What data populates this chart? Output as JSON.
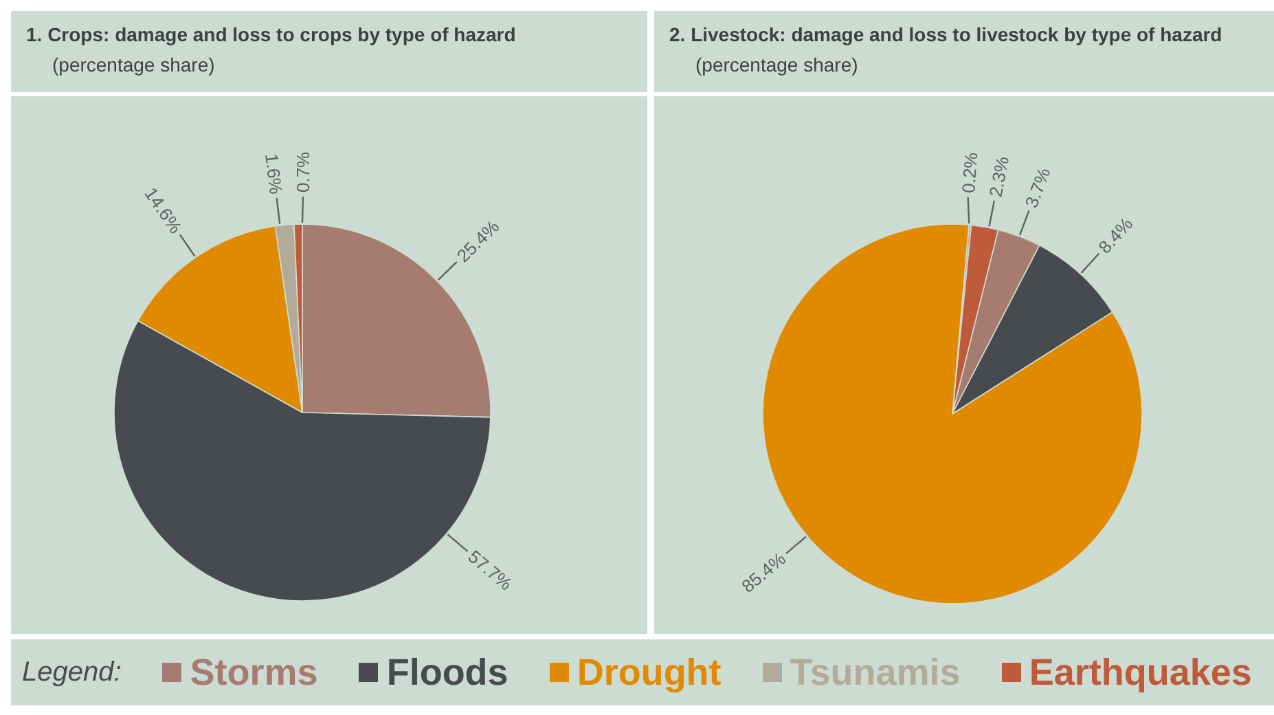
{
  "chart_data": [
    {
      "type": "pie",
      "title": "1. Crops: damage and loss to crops by type of hazard",
      "subtitle": "(percentage share)",
      "categories": [
        "Storms",
        "Floods",
        "Drought",
        "Tsunamis",
        "Earthquakes"
      ],
      "values": [
        25.4,
        57.7,
        14.6,
        1.6,
        0.7
      ],
      "value_labels": [
        "25.4%",
        "57.7%",
        "14.6%",
        "1.6%",
        "0.7%"
      ],
      "colors": [
        "#a67c70",
        "#474b50",
        "#e08a00",
        "#b3ab99",
        "#bf5a3a"
      ],
      "legend": "bottom",
      "legend_title": "Legend:"
    },
    {
      "type": "pie",
      "title": "2. Livestock: damage and loss to livestock by type of hazard",
      "subtitle": "(percentage share)",
      "categories": [
        null,
        null,
        null,
        null,
        null
      ],
      "values": [
        0.2,
        2.3,
        3.7,
        8.4,
        85.4
      ],
      "value_labels": [
        "0.2%",
        "2.3%",
        "3.7%",
        "8.4%",
        "85.4%"
      ],
      "colors": [
        "#b3ab99",
        "#bf5a3a",
        "#a67c70",
        "#474b50",
        "#e08a00"
      ]
    }
  ]
}
